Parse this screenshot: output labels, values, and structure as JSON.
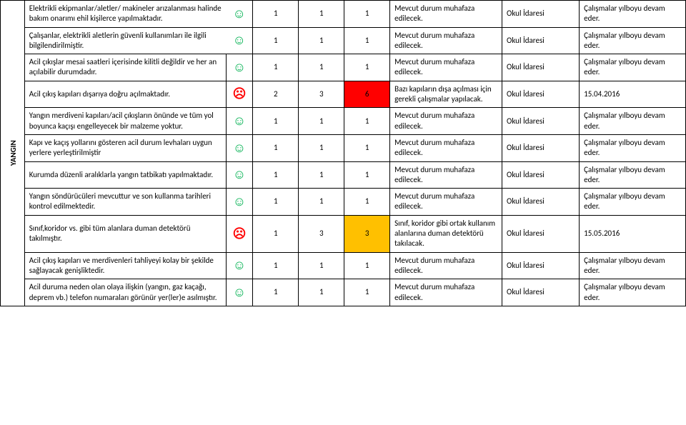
{
  "section_label": "YANGIN",
  "rows": [
    {
      "desc": "Elektrikli ekipmanlar/aletler/ makineler arızalanması halinde bakım onarımı ehil kişilerce yapılmaktadır.",
      "mood": "good",
      "v1": "1",
      "v2": "1",
      "v3": "1",
      "v3_class": "",
      "status": "Mevcut durum muhafaza edilecek.",
      "resp": "Okul İdaresi",
      "note": "Çalışmalar yılboyu devam eder."
    },
    {
      "desc": "Çalışanlar, elektrikli aletlerin güvenli kullanımları ile ilgili bilgilendirilmiştir.",
      "mood": "good",
      "v1": "1",
      "v2": "1",
      "v3": "1",
      "v3_class": "",
      "status": "Mevcut durum muhafaza edilecek.",
      "resp": "Okul İdaresi",
      "note": "Çalışmalar yılboyu devam eder."
    },
    {
      "desc": "Acil çıkışlar mesai saatleri içerisinde kilitli değildir ve her an açılabilir durumdadır.",
      "mood": "good",
      "v1": "1",
      "v2": "1",
      "v3": "1",
      "v3_class": "",
      "status": "Mevcut durum muhafaza edilecek.",
      "resp": "Okul İdaresi",
      "note": "Çalışmalar yılboyu devam eder."
    },
    {
      "desc": "Acil çıkış kapıları dışarıya doğru açılmaktadır.",
      "mood": "bad",
      "v1": "2",
      "v2": "3",
      "v3": "6",
      "v3_class": "score6",
      "status": "Bazı kapıların dışa açılması için gerekli çalışmalar yapılacak.",
      "resp": "Okul İdaresi",
      "note": "15.04.2016"
    },
    {
      "desc": "Yangın merdiveni kapıları/acil çıkışların önünde ve tüm yol boyunca kaçışı engelleyecek bir malzeme yoktur.",
      "mood": "good",
      "v1": "1",
      "v2": "1",
      "v3": "1",
      "v3_class": "",
      "status": "Mevcut durum muhafaza edilecek.",
      "resp": "Okul İdaresi",
      "note": "Çalışmalar yılboyu devam eder."
    },
    {
      "desc": "Kapı ve kaçış yollarını gösteren acil durum levhaları uygun yerlere yerleştirilmiştir",
      "mood": "good",
      "v1": "1",
      "v2": "1",
      "v3": "1",
      "v3_class": "",
      "status": "Mevcut durum muhafaza edilecek.",
      "resp": "Okul İdaresi",
      "note": "Çalışmalar yılboyu devam eder."
    },
    {
      "desc": "Kurumda düzenli aralıklarla yangın tatbikatı yapılmaktadır.",
      "mood": "good",
      "v1": "1",
      "v2": "1",
      "v3": "1",
      "v3_class": "",
      "status": "Mevcut durum muhafaza edilecek.",
      "resp": "Okul İdaresi",
      "note": "Çalışmalar yılboyu devam eder."
    },
    {
      "desc": "Yangın söndürücüleri mevcuttur ve son kullanma tarihleri kontrol edilmektedir.",
      "mood": "good",
      "v1": "1",
      "v2": "1",
      "v3": "1",
      "v3_class": "",
      "status": "Mevcut durum muhafaza edilecek.",
      "resp": "Okul İdaresi",
      "note": "Çalışmalar yılboyu devam eder."
    },
    {
      "desc": "Sınıf,koridor vs. gibi tüm alanlara duman detektörü takılmıştır.",
      "mood": "bad",
      "v1": "1",
      "v2": "3",
      "v3": "3",
      "v3_class": "score3",
      "status": "Sınıf, koridor gibi ortak kullanım alanlarına duman detektörü takılacak.",
      "resp": "Okul İdaresi",
      "note": "15.05.2016"
    },
    {
      "desc": "Acil çıkış kapıları ve merdivenleri tahliyeyi kolay bir şekilde sağlayacak genişliktedir.",
      "mood": "good",
      "v1": "1",
      "v2": "1",
      "v3": "1",
      "v3_class": "",
      "status": "Mevcut durum muhafaza edilecek.",
      "resp": "Okul İdaresi",
      "note": "Çalışmalar yılboyu devam eder."
    },
    {
      "desc": "Acil duruma neden olan olaya ilişkin (yangın, gaz kaçağı, deprem vb.) telefon numaraları görünür yer(ler)e asılmıştır.",
      "mood": "good",
      "v1": "1",
      "v2": "1",
      "v3": "1",
      "v3_class": "",
      "status": "Mevcut durum muhafaza edilecek.",
      "resp": "Okul İdaresi",
      "note": "Çalışmalar yılboyu devam eder."
    }
  ]
}
